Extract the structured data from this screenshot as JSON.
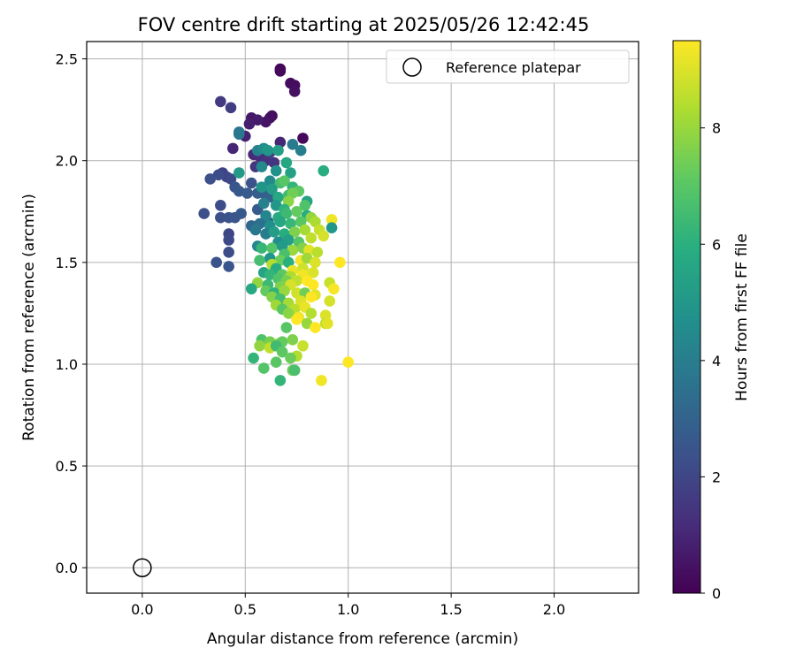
{
  "chart_data": {
    "type": "scatter",
    "title": "FOV centre drift starting at 2025/05/26 12:42:45",
    "xlabel": "Angular distance from reference (arcmin)",
    "ylabel": "Rotation from reference (arcmin)",
    "xlim": [
      -0.27,
      2.41
    ],
    "ylim": [
      -0.125,
      2.585
    ],
    "xticks": [
      0.0,
      0.5,
      1.0,
      1.5,
      2.0
    ],
    "xtick_labels": [
      "0.0",
      "0.5",
      "1.0",
      "1.5",
      "2.0"
    ],
    "yticks": [
      0.0,
      0.5,
      1.0,
      1.5,
      2.0,
      2.5
    ],
    "ytick_labels": [
      "0.0",
      "0.5",
      "1.0",
      "1.5",
      "2.0",
      "2.5"
    ],
    "grid": true,
    "legend": {
      "placement": "top-right",
      "entries": [
        "Reference platepar"
      ]
    },
    "reference_point": {
      "x": 0.0,
      "y": 0.0
    },
    "colorbar": {
      "label": "Hours from first FF file",
      "colormap": "viridis",
      "range": [
        0,
        9.5
      ],
      "ticks": [
        0,
        2,
        4,
        6,
        8
      ],
      "tick_labels": [
        "0",
        "2",
        "4",
        "6",
        "8"
      ]
    },
    "points": [
      {
        "x": 0.67,
        "y": 2.45,
        "h": 0.1
      },
      {
        "x": 0.67,
        "y": 2.44,
        "h": 0.2
      },
      {
        "x": 0.72,
        "y": 2.38,
        "h": 0.3
      },
      {
        "x": 0.74,
        "y": 2.37,
        "h": 0.3
      },
      {
        "x": 0.74,
        "y": 2.34,
        "h": 0.4
      },
      {
        "x": 0.78,
        "y": 2.11,
        "h": 0.2
      },
      {
        "x": 0.63,
        "y": 2.22,
        "h": 0.3
      },
      {
        "x": 0.62,
        "y": 2.21,
        "h": 0.4
      },
      {
        "x": 0.6,
        "y": 2.19,
        "h": 0.5
      },
      {
        "x": 0.53,
        "y": 2.21,
        "h": 0.6
      },
      {
        "x": 0.56,
        "y": 2.2,
        "h": 0.7
      },
      {
        "x": 0.52,
        "y": 2.18,
        "h": 0.8
      },
      {
        "x": 0.5,
        "y": 2.12,
        "h": 0.9
      },
      {
        "x": 0.67,
        "y": 2.09,
        "h": 1.0
      },
      {
        "x": 0.44,
        "y": 2.06,
        "h": 1.0
      },
      {
        "x": 0.54,
        "y": 2.03,
        "h": 1.1
      },
      {
        "x": 0.57,
        "y": 2.02,
        "h": 1.2
      },
      {
        "x": 0.6,
        "y": 2.0,
        "h": 1.3
      },
      {
        "x": 0.64,
        "y": 1.99,
        "h": 1.4
      },
      {
        "x": 0.55,
        "y": 1.97,
        "h": 1.5
      },
      {
        "x": 0.38,
        "y": 2.29,
        "h": 1.6
      },
      {
        "x": 0.43,
        "y": 2.26,
        "h": 1.7
      },
      {
        "x": 0.62,
        "y": 2.04,
        "h": 1.8
      },
      {
        "x": 0.39,
        "y": 1.94,
        "h": 1.9
      },
      {
        "x": 0.41,
        "y": 1.92,
        "h": 2.0
      },
      {
        "x": 0.43,
        "y": 1.91,
        "h": 2.1
      },
      {
        "x": 0.37,
        "y": 1.93,
        "h": 2.2
      },
      {
        "x": 0.33,
        "y": 1.91,
        "h": 2.3
      },
      {
        "x": 0.53,
        "y": 1.89,
        "h": 2.4
      },
      {
        "x": 0.45,
        "y": 1.87,
        "h": 2.5
      },
      {
        "x": 0.47,
        "y": 1.85,
        "h": 2.6
      },
      {
        "x": 0.51,
        "y": 1.84,
        "h": 2.7
      },
      {
        "x": 0.56,
        "y": 1.84,
        "h": 2.8
      },
      {
        "x": 0.6,
        "y": 1.83,
        "h": 2.9
      },
      {
        "x": 0.63,
        "y": 1.82,
        "h": 3.0
      },
      {
        "x": 0.38,
        "y": 1.78,
        "h": 2.2
      },
      {
        "x": 0.38,
        "y": 1.72,
        "h": 2.3
      },
      {
        "x": 0.42,
        "y": 1.72,
        "h": 2.4
      },
      {
        "x": 0.45,
        "y": 1.72,
        "h": 2.5
      },
      {
        "x": 0.48,
        "y": 1.74,
        "h": 2.6
      },
      {
        "x": 0.3,
        "y": 1.74,
        "h": 2.3
      },
      {
        "x": 0.56,
        "y": 1.76,
        "h": 2.7
      },
      {
        "x": 0.61,
        "y": 1.7,
        "h": 2.9
      },
      {
        "x": 0.53,
        "y": 1.68,
        "h": 3.1
      },
      {
        "x": 0.42,
        "y": 1.64,
        "h": 2.0
      },
      {
        "x": 0.42,
        "y": 1.61,
        "h": 2.1
      },
      {
        "x": 0.42,
        "y": 1.55,
        "h": 2.2
      },
      {
        "x": 0.36,
        "y": 1.5,
        "h": 2.4
      },
      {
        "x": 0.42,
        "y": 1.48,
        "h": 2.5
      },
      {
        "x": 0.47,
        "y": 2.14,
        "h": 3.6
      },
      {
        "x": 0.47,
        "y": 2.13,
        "h": 3.8
      },
      {
        "x": 0.73,
        "y": 2.08,
        "h": 3.9
      },
      {
        "x": 0.77,
        "y": 2.05,
        "h": 4.0
      },
      {
        "x": 0.56,
        "y": 2.05,
        "h": 4.2
      },
      {
        "x": 0.59,
        "y": 2.06,
        "h": 4.6
      },
      {
        "x": 0.61,
        "y": 2.05,
        "h": 5.0
      },
      {
        "x": 0.66,
        "y": 2.05,
        "h": 5.3
      },
      {
        "x": 0.58,
        "y": 1.97,
        "h": 4.4
      },
      {
        "x": 0.47,
        "y": 1.94,
        "h": 5.1
      },
      {
        "x": 0.7,
        "y": 1.99,
        "h": 5.6
      },
      {
        "x": 0.65,
        "y": 1.95,
        "h": 4.8
      },
      {
        "x": 0.72,
        "y": 1.94,
        "h": 5.4
      },
      {
        "x": 0.88,
        "y": 1.95,
        "h": 5.9
      },
      {
        "x": 0.62,
        "y": 1.9,
        "h": 4.5
      },
      {
        "x": 0.67,
        "y": 1.89,
        "h": 6.6
      },
      {
        "x": 0.69,
        "y": 1.9,
        "h": 7.0
      },
      {
        "x": 0.58,
        "y": 1.87,
        "h": 4.9
      },
      {
        "x": 0.63,
        "y": 1.86,
        "h": 5.2
      },
      {
        "x": 0.73,
        "y": 1.87,
        "h": 6.2
      },
      {
        "x": 0.76,
        "y": 1.85,
        "h": 7.1
      },
      {
        "x": 0.66,
        "y": 1.82,
        "h": 5.7
      },
      {
        "x": 0.71,
        "y": 1.83,
        "h": 6.5
      },
      {
        "x": 0.73,
        "y": 1.84,
        "h": 7.4
      },
      {
        "x": 0.8,
        "y": 1.8,
        "h": 5.5
      },
      {
        "x": 0.79,
        "y": 1.78,
        "h": 6.8
      },
      {
        "x": 0.59,
        "y": 1.79,
        "h": 4.1
      },
      {
        "x": 0.65,
        "y": 1.78,
        "h": 5.0
      },
      {
        "x": 0.71,
        "y": 1.8,
        "h": 7.8
      },
      {
        "x": 0.69,
        "y": 1.76,
        "h": 6.1
      },
      {
        "x": 0.6,
        "y": 1.73,
        "h": 4.3
      },
      {
        "x": 0.66,
        "y": 1.72,
        "h": 5.8
      },
      {
        "x": 0.7,
        "y": 1.74,
        "h": 6.4
      },
      {
        "x": 0.75,
        "y": 1.75,
        "h": 7.2
      },
      {
        "x": 0.8,
        "y": 1.73,
        "h": 5.9
      },
      {
        "x": 0.82,
        "y": 1.72,
        "h": 7.9
      },
      {
        "x": 0.57,
        "y": 1.69,
        "h": 3.5
      },
      {
        "x": 0.62,
        "y": 1.68,
        "h": 4.7
      },
      {
        "x": 0.67,
        "y": 1.7,
        "h": 5.6
      },
      {
        "x": 0.72,
        "y": 1.69,
        "h": 6.3
      },
      {
        "x": 0.77,
        "y": 1.7,
        "h": 7.0
      },
      {
        "x": 0.84,
        "y": 1.7,
        "h": 8.3
      },
      {
        "x": 0.86,
        "y": 1.66,
        "h": 8.7
      },
      {
        "x": 0.92,
        "y": 1.71,
        "h": 9.3
      },
      {
        "x": 0.92,
        "y": 1.67,
        "h": 5.0
      },
      {
        "x": 0.55,
        "y": 1.66,
        "h": 3.8
      },
      {
        "x": 0.6,
        "y": 1.64,
        "h": 4.0
      },
      {
        "x": 0.64,
        "y": 1.65,
        "h": 5.2
      },
      {
        "x": 0.69,
        "y": 1.64,
        "h": 5.9
      },
      {
        "x": 0.74,
        "y": 1.65,
        "h": 7.6
      },
      {
        "x": 0.79,
        "y": 1.66,
        "h": 8.2
      },
      {
        "x": 0.88,
        "y": 1.63,
        "h": 8.9
      },
      {
        "x": 0.82,
        "y": 1.62,
        "h": 8.6
      },
      {
        "x": 0.66,
        "y": 1.6,
        "h": 4.6
      },
      {
        "x": 0.71,
        "y": 1.61,
        "h": 5.3
      },
      {
        "x": 0.76,
        "y": 1.6,
        "h": 6.9
      },
      {
        "x": 0.56,
        "y": 1.58,
        "h": 4.4
      },
      {
        "x": 0.58,
        "y": 1.57,
        "h": 6.3
      },
      {
        "x": 0.63,
        "y": 1.57,
        "h": 6.9
      },
      {
        "x": 0.68,
        "y": 1.58,
        "h": 5.1
      },
      {
        "x": 0.73,
        "y": 1.56,
        "h": 8.0
      },
      {
        "x": 0.78,
        "y": 1.57,
        "h": 7.7
      },
      {
        "x": 0.81,
        "y": 1.56,
        "h": 9.1
      },
      {
        "x": 0.85,
        "y": 1.55,
        "h": 8.5
      },
      {
        "x": 0.69,
        "y": 1.54,
        "h": 6.7
      },
      {
        "x": 0.62,
        "y": 1.52,
        "h": 4.9
      },
      {
        "x": 0.57,
        "y": 1.51,
        "h": 6.6
      },
      {
        "x": 0.67,
        "y": 1.51,
        "h": 7.3
      },
      {
        "x": 0.71,
        "y": 1.5,
        "h": 6.0
      },
      {
        "x": 0.77,
        "y": 1.51,
        "h": 9.4
      },
      {
        "x": 0.8,
        "y": 1.52,
        "h": 8.1
      },
      {
        "x": 0.84,
        "y": 1.5,
        "h": 9.0
      },
      {
        "x": 0.96,
        "y": 1.5,
        "h": 9.5
      },
      {
        "x": 0.63,
        "y": 1.49,
        "h": 8.4
      },
      {
        "x": 0.65,
        "y": 1.47,
        "h": 5.8
      },
      {
        "x": 0.73,
        "y": 1.46,
        "h": 9.2
      },
      {
        "x": 0.78,
        "y": 1.47,
        "h": 8.8
      },
      {
        "x": 0.59,
        "y": 1.45,
        "h": 5.5
      },
      {
        "x": 0.62,
        "y": 1.44,
        "h": 6.2
      },
      {
        "x": 0.68,
        "y": 1.44,
        "h": 7.1
      },
      {
        "x": 0.72,
        "y": 1.43,
        "h": 8.3
      },
      {
        "x": 0.78,
        "y": 1.44,
        "h": 9.3
      },
      {
        "x": 0.83,
        "y": 1.45,
        "h": 9.0
      },
      {
        "x": 0.66,
        "y": 1.42,
        "h": 6.8
      },
      {
        "x": 0.7,
        "y": 1.41,
        "h": 7.5
      },
      {
        "x": 0.75,
        "y": 1.41,
        "h": 8.6
      },
      {
        "x": 0.8,
        "y": 1.41,
        "h": 9.6
      },
      {
        "x": 0.56,
        "y": 1.4,
        "h": 7.9
      },
      {
        "x": 0.61,
        "y": 1.39,
        "h": 6.4
      },
      {
        "x": 0.67,
        "y": 1.38,
        "h": 7.6
      },
      {
        "x": 0.72,
        "y": 1.39,
        "h": 8.9
      },
      {
        "x": 0.83,
        "y": 1.39,
        "h": 9.5
      },
      {
        "x": 0.91,
        "y": 1.4,
        "h": 8.7
      },
      {
        "x": 0.93,
        "y": 1.37,
        "h": 9.4
      },
      {
        "x": 0.53,
        "y": 1.37,
        "h": 5.7
      },
      {
        "x": 0.6,
        "y": 1.36,
        "h": 7.2
      },
      {
        "x": 0.64,
        "y": 1.35,
        "h": 6.1
      },
      {
        "x": 0.69,
        "y": 1.36,
        "h": 8.0
      },
      {
        "x": 0.75,
        "y": 1.35,
        "h": 8.8
      },
      {
        "x": 0.79,
        "y": 1.35,
        "h": 7.4
      },
      {
        "x": 0.84,
        "y": 1.34,
        "h": 9.1
      },
      {
        "x": 0.63,
        "y": 1.33,
        "h": 7.7
      },
      {
        "x": 0.67,
        "y": 1.32,
        "h": 6.6
      },
      {
        "x": 0.71,
        "y": 1.3,
        "h": 8.2
      },
      {
        "x": 0.77,
        "y": 1.31,
        "h": 9.0
      },
      {
        "x": 0.82,
        "y": 1.33,
        "h": 9.6
      },
      {
        "x": 0.91,
        "y": 1.31,
        "h": 8.9
      },
      {
        "x": 0.65,
        "y": 1.29,
        "h": 8.1
      },
      {
        "x": 0.68,
        "y": 1.27,
        "h": 7.0
      },
      {
        "x": 0.74,
        "y": 1.27,
        "h": 8.5
      },
      {
        "x": 0.79,
        "y": 1.28,
        "h": 9.2
      },
      {
        "x": 0.71,
        "y": 1.25,
        "h": 7.8
      },
      {
        "x": 0.76,
        "y": 1.23,
        "h": 9.3
      },
      {
        "x": 0.82,
        "y": 1.25,
        "h": 8.4
      },
      {
        "x": 0.75,
        "y": 1.22,
        "h": 9.6
      },
      {
        "x": 0.89,
        "y": 1.24,
        "h": 9.0
      },
      {
        "x": 0.89,
        "y": 1.2,
        "h": 8.6
      },
      {
        "x": 0.9,
        "y": 1.2,
        "h": 9.1
      },
      {
        "x": 0.8,
        "y": 1.2,
        "h": 8.0
      },
      {
        "x": 0.84,
        "y": 1.18,
        "h": 9.5
      },
      {
        "x": 0.7,
        "y": 1.18,
        "h": 7.0
      },
      {
        "x": 0.58,
        "y": 1.12,
        "h": 6.8
      },
      {
        "x": 0.62,
        "y": 1.11,
        "h": 7.5
      },
      {
        "x": 0.66,
        "y": 1.1,
        "h": 8.0
      },
      {
        "x": 0.68,
        "y": 1.11,
        "h": 7.2
      },
      {
        "x": 0.73,
        "y": 1.12,
        "h": 7.6
      },
      {
        "x": 0.57,
        "y": 1.09,
        "h": 7.9
      },
      {
        "x": 0.62,
        "y": 1.08,
        "h": 8.6
      },
      {
        "x": 0.65,
        "y": 1.09,
        "h": 6.5
      },
      {
        "x": 0.78,
        "y": 1.09,
        "h": 8.7
      },
      {
        "x": 0.68,
        "y": 1.06,
        "h": 7.1
      },
      {
        "x": 0.75,
        "y": 1.04,
        "h": 8.4
      },
      {
        "x": 0.54,
        "y": 1.03,
        "h": 6.2
      },
      {
        "x": 0.72,
        "y": 1.03,
        "h": 7.3
      },
      {
        "x": 0.65,
        "y": 1.01,
        "h": 7.0
      },
      {
        "x": 1.0,
        "y": 1.01,
        "h": 9.5
      },
      {
        "x": 0.59,
        "y": 0.98,
        "h": 6.9
      },
      {
        "x": 0.73,
        "y": 0.97,
        "h": 7.4
      },
      {
        "x": 0.74,
        "y": 0.97,
        "h": 6.7
      },
      {
        "x": 0.67,
        "y": 0.92,
        "h": 6.2
      },
      {
        "x": 0.87,
        "y": 0.92,
        "h": 9.3
      }
    ]
  }
}
